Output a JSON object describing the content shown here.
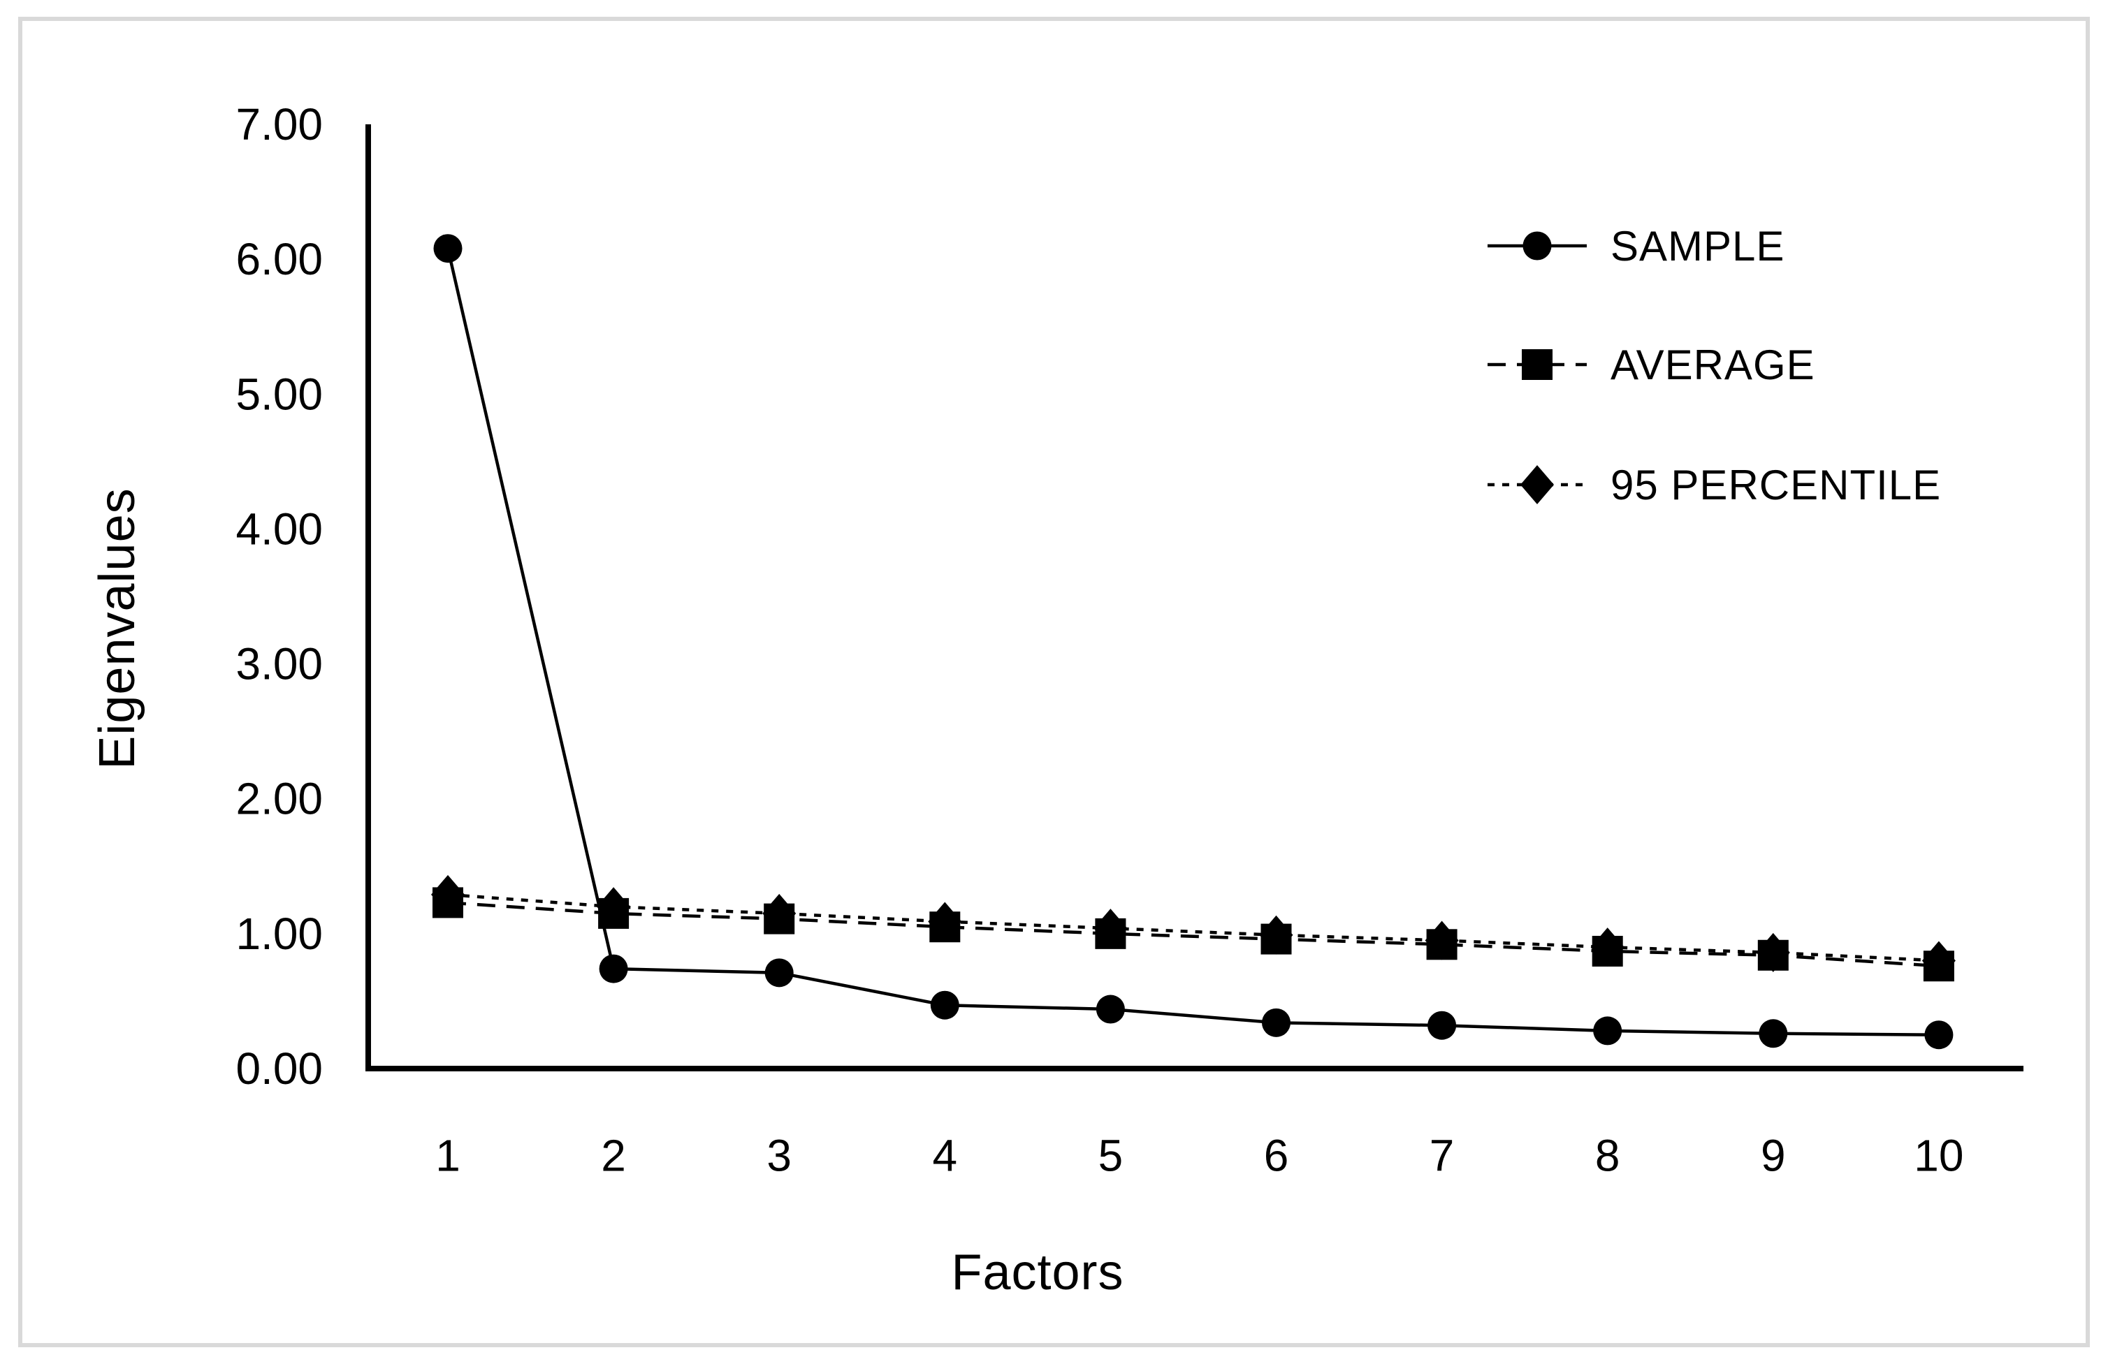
{
  "page": {
    "background": "#ffffff",
    "frame_border_color": "#d9d9d9",
    "ink_color": "#000000"
  },
  "chart_data": {
    "type": "line",
    "title": "",
    "xlabel": "Factors",
    "ylabel": "Eigenvalues",
    "x": [
      "1",
      "2",
      "3",
      "4",
      "5",
      "6",
      "7",
      "8",
      "9",
      "10"
    ],
    "yticks": [
      "0.00",
      "1.00",
      "2.00",
      "3.00",
      "4.00",
      "5.00",
      "6.00",
      "7.00"
    ],
    "ylim": [
      0,
      7
    ],
    "grid": false,
    "legend_position": "top-right",
    "series": [
      {
        "name": "SAMPLE",
        "marker": "circle",
        "line_style": "solid",
        "color": "#000000",
        "values": [
          6.08,
          0.74,
          0.71,
          0.47,
          0.44,
          0.34,
          0.32,
          0.28,
          0.26,
          0.25
        ]
      },
      {
        "name": "AVERAGE",
        "marker": "square",
        "line_style": "dashed",
        "color": "#000000",
        "values": [
          1.23,
          1.15,
          1.11,
          1.05,
          1.0,
          0.96,
          0.92,
          0.87,
          0.84,
          0.76
        ]
      },
      {
        "name": "95 PERCENTILE",
        "marker": "diamond",
        "line_style": "dotted",
        "color": "#000000",
        "values": [
          1.29,
          1.2,
          1.15,
          1.09,
          1.04,
          0.99,
          0.95,
          0.9,
          0.86,
          0.8
        ]
      }
    ]
  }
}
